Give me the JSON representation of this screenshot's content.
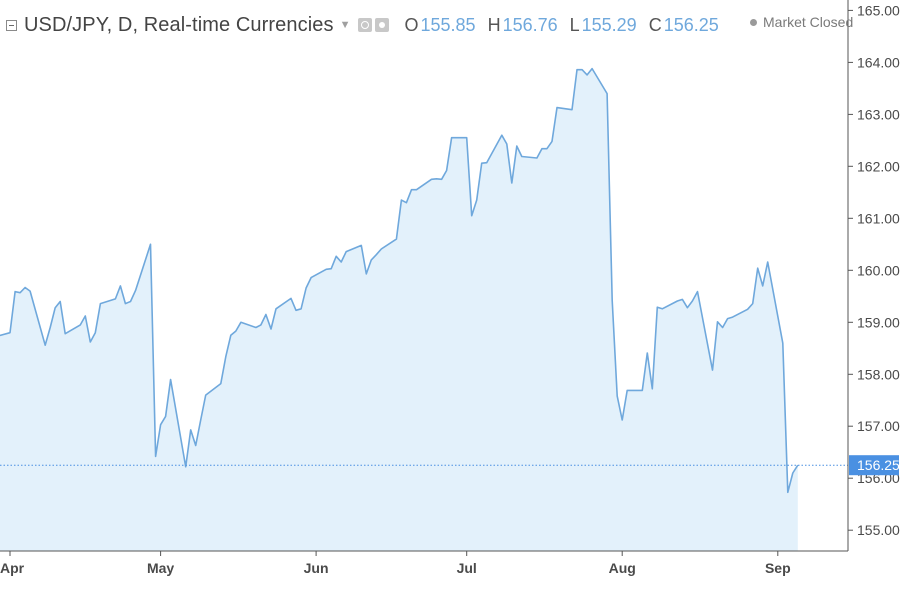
{
  "header": {
    "symbol_title": "USD/JPY, D, Real-time Currencies",
    "ohlc": [
      {
        "key": "O",
        "value": "155.85"
      },
      {
        "key": "H",
        "value": "156.76"
      },
      {
        "key": "L",
        "value": "155.29"
      },
      {
        "key": "C",
        "value": "156.25"
      }
    ],
    "icons": [
      "collapse-icon",
      "chevron-down-icon",
      "eye-icon",
      "gear-icon"
    ]
  },
  "status": {
    "text": "Market Closed"
  },
  "last_price": {
    "label": "156.25",
    "value": 156.25
  },
  "colors": {
    "line": "#6fa8dc",
    "fill": "#e3f1fb",
    "price_tag": "#4a90e2",
    "axis_text": "#4a4a4a"
  },
  "chart_data": {
    "type": "area",
    "title": "USD/JPY, D, Real-time Currencies",
    "xlabel": "",
    "ylabel": "",
    "ylim": [
      154.6,
      165.2
    ],
    "yticks": [
      155.0,
      156.0,
      157.0,
      158.0,
      159.0,
      160.0,
      161.0,
      162.0,
      163.0,
      164.0,
      165.0
    ],
    "ytick_labels": [
      "155.00",
      "156.00",
      "157.00",
      "158.00",
      "159.00",
      "160.00",
      "161.00",
      "162.00",
      "163.00",
      "164.00",
      "165.00"
    ],
    "x_range": [
      "2024-03-30",
      "2024-09-15"
    ],
    "month_ticks": [
      {
        "label": "Apr",
        "date": "2024-04-01"
      },
      {
        "label": "May",
        "date": "2024-05-01"
      },
      {
        "label": "Jun",
        "date": "2024-06-01"
      },
      {
        "label": "Jul",
        "date": "2024-07-01"
      },
      {
        "label": "Aug",
        "date": "2024-08-01"
      },
      {
        "label": "Sep",
        "date": "2024-09-01"
      }
    ],
    "grid": false,
    "legend": "top-left",
    "series": [
      {
        "dates": [
          "2024-03-29",
          "2024-04-01",
          "2024-04-02",
          "2024-04-03",
          "2024-04-04",
          "2024-04-05",
          "2024-04-08",
          "2024-04-09",
          "2024-04-10",
          "2024-04-11",
          "2024-04-12",
          "2024-04-15",
          "2024-04-16",
          "2024-04-17",
          "2024-04-18",
          "2024-04-19",
          "2024-04-22",
          "2024-04-23",
          "2024-04-24",
          "2024-04-25",
          "2024-04-26",
          "2024-04-29",
          "2024-04-30",
          "2024-05-01",
          "2024-05-02",
          "2024-05-03",
          "2024-05-06",
          "2024-05-07",
          "2024-05-08",
          "2024-05-09",
          "2024-05-10",
          "2024-05-13",
          "2024-05-14",
          "2024-05-15",
          "2024-05-16",
          "2024-05-17",
          "2024-05-20",
          "2024-05-21",
          "2024-05-22",
          "2024-05-23",
          "2024-05-24",
          "2024-05-27",
          "2024-05-28",
          "2024-05-29",
          "2024-05-30",
          "2024-05-31",
          "2024-06-03",
          "2024-06-04",
          "2024-06-05",
          "2024-06-06",
          "2024-06-07",
          "2024-06-10",
          "2024-06-11",
          "2024-06-12",
          "2024-06-13",
          "2024-06-14",
          "2024-06-17",
          "2024-06-18",
          "2024-06-19",
          "2024-06-20",
          "2024-06-21",
          "2024-06-24",
          "2024-06-25",
          "2024-06-26",
          "2024-06-27",
          "2024-06-28",
          "2024-07-01",
          "2024-07-02",
          "2024-07-03",
          "2024-07-04",
          "2024-07-05",
          "2024-07-08",
          "2024-07-09",
          "2024-07-10",
          "2024-07-11",
          "2024-07-12",
          "2024-07-15",
          "2024-07-16",
          "2024-07-17",
          "2024-07-18",
          "2024-07-19",
          "2024-07-22",
          "2024-07-23",
          "2024-07-24",
          "2024-07-25",
          "2024-07-26",
          "2024-07-29",
          "2024-07-30",
          "2024-07-31",
          "2024-08-01",
          "2024-08-02",
          "2024-08-05",
          "2024-08-06",
          "2024-08-07",
          "2024-08-08",
          "2024-08-09",
          "2024-08-12",
          "2024-08-13",
          "2024-08-14",
          "2024-08-15",
          "2024-08-16",
          "2024-08-19",
          "2024-08-20",
          "2024-08-21",
          "2024-08-22",
          "2024-08-23",
          "2024-08-26",
          "2024-08-27",
          "2024-08-28",
          "2024-08-29",
          "2024-08-30",
          "2024-09-02",
          "2024-09-03",
          "2024-09-04",
          "2024-09-05"
        ],
        "values": [
          158.72,
          158.8,
          159.59,
          159.57,
          159.67,
          159.6,
          158.56,
          158.9,
          159.28,
          159.4,
          158.78,
          158.95,
          159.12,
          158.62,
          158.8,
          159.36,
          159.45,
          159.7,
          159.36,
          159.4,
          159.61,
          160.5,
          156.42,
          157.03,
          157.19,
          157.9,
          156.22,
          156.93,
          156.63,
          157.12,
          157.6,
          157.82,
          158.34,
          158.75,
          158.83,
          159.0,
          158.9,
          158.95,
          159.15,
          158.87,
          159.26,
          159.46,
          159.23,
          159.26,
          159.66,
          159.86,
          160.02,
          160.03,
          160.27,
          160.16,
          160.36,
          160.48,
          159.93,
          160.2,
          160.3,
          160.41,
          160.6,
          161.35,
          161.3,
          161.55,
          161.55,
          161.75,
          161.76,
          161.75,
          161.92,
          162.55,
          162.55,
          161.05,
          161.35,
          162.06,
          162.07,
          162.6,
          162.43,
          161.68,
          162.39,
          162.19,
          162.16,
          162.34,
          162.34,
          162.48,
          163.13,
          163.09,
          163.86,
          163.86,
          163.76,
          163.88,
          163.4,
          159.42,
          157.58,
          157.12,
          157.69,
          157.69,
          158.41,
          157.72,
          159.29,
          159.26,
          159.41,
          159.44,
          159.28,
          159.41,
          159.59,
          158.08,
          159.01,
          158.9,
          159.07,
          159.1,
          159.25,
          159.36,
          160.04,
          159.7,
          160.16,
          158.6,
          155.73,
          156.1,
          156.25
        ]
      }
    ]
  }
}
